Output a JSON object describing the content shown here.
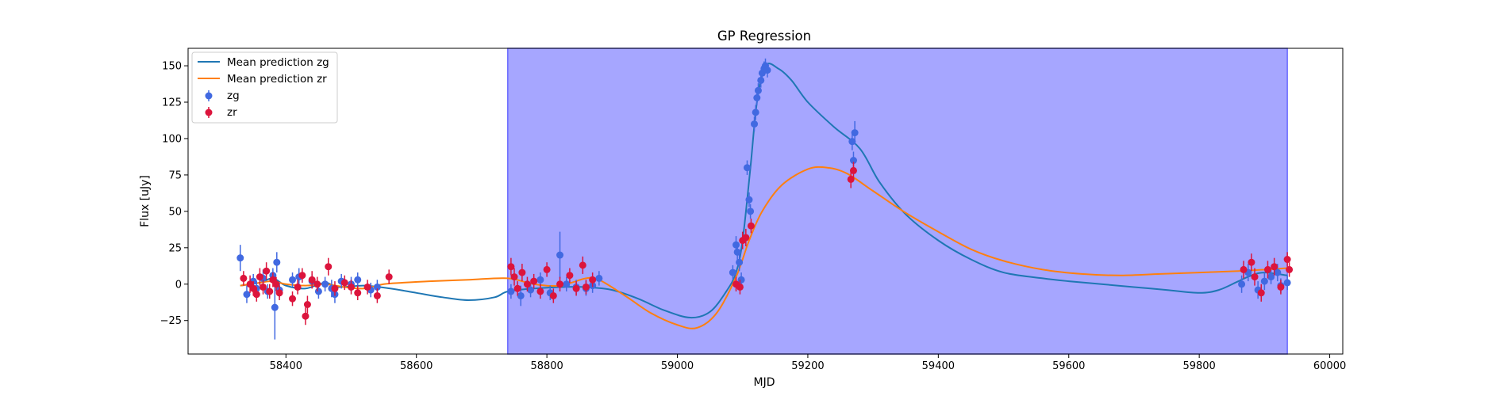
{
  "chart_data": {
    "type": "scatter",
    "title": "GP Regression",
    "xlabel": "MJD",
    "ylabel": "Flux [uJy]",
    "xlim": [
      58250,
      60020
    ],
    "ylim": [
      -48,
      162
    ],
    "xticks": [
      58400,
      58600,
      58800,
      59000,
      59200,
      59400,
      59600,
      59800,
      60000
    ],
    "yticks": [
      -25,
      0,
      25,
      50,
      75,
      100,
      125,
      150
    ],
    "legend_placement": "upper-left",
    "shaded_region": {
      "x0": 58740,
      "x1": 59935,
      "color": "#a6a6ff"
    },
    "colors": {
      "zg_line": "#1f77b4",
      "zr_line": "#ff7f0e",
      "zg_points": "#4169e1",
      "zr_points": "#dc143c",
      "shade": "#a6a6ff"
    },
    "lines": [
      {
        "name": "Mean prediction zg",
        "color": "#1f77b4",
        "points": [
          [
            58330,
            -1
          ],
          [
            58360,
            1
          ],
          [
            58380,
            4
          ],
          [
            58400,
            -1
          ],
          [
            58430,
            -3
          ],
          [
            58460,
            1
          ],
          [
            58480,
            -2
          ],
          [
            58520,
            -1
          ],
          [
            58560,
            -3
          ],
          [
            58600,
            -6
          ],
          [
            58640,
            -9
          ],
          [
            58680,
            -11
          ],
          [
            58720,
            -9
          ],
          [
            58740,
            -5
          ],
          [
            58780,
            -3
          ],
          [
            58820,
            -2
          ],
          [
            58860,
            -2
          ],
          [
            58900,
            -4
          ],
          [
            58940,
            -10
          ],
          [
            58980,
            -18
          ],
          [
            59020,
            -23
          ],
          [
            59050,
            -19
          ],
          [
            59075,
            -5
          ],
          [
            59090,
            8
          ],
          [
            59100,
            30
          ],
          [
            59112,
            80
          ],
          [
            59122,
            125
          ],
          [
            59135,
            150
          ],
          [
            59155,
            148
          ],
          [
            59175,
            140
          ],
          [
            59200,
            125
          ],
          [
            59240,
            108
          ],
          [
            59280,
            93
          ],
          [
            59310,
            70
          ],
          [
            59350,
            48
          ],
          [
            59400,
            30
          ],
          [
            59450,
            17
          ],
          [
            59500,
            8
          ],
          [
            59560,
            4
          ],
          [
            59600,
            2
          ],
          [
            59650,
            0
          ],
          [
            59700,
            -2
          ],
          [
            59750,
            -4
          ],
          [
            59800,
            -6
          ],
          [
            59830,
            -4
          ],
          [
            59860,
            2
          ],
          [
            59880,
            6
          ],
          [
            59900,
            8
          ],
          [
            59935,
            6
          ]
        ]
      },
      {
        "name": "Mean prediction zr",
        "color": "#ff7f0e",
        "points": [
          [
            58330,
            -1
          ],
          [
            58360,
            1
          ],
          [
            58380,
            2
          ],
          [
            58400,
            0
          ],
          [
            58430,
            -1
          ],
          [
            58460,
            0
          ],
          [
            58490,
            -2
          ],
          [
            58520,
            -3
          ],
          [
            58550,
            0
          ],
          [
            58580,
            1
          ],
          [
            58620,
            2
          ],
          [
            58680,
            3
          ],
          [
            58740,
            4
          ],
          [
            58780,
            0
          ],
          [
            58820,
            -1
          ],
          [
            58860,
            4
          ],
          [
            58880,
            3
          ],
          [
            58920,
            -8
          ],
          [
            58960,
            -20
          ],
          [
            59000,
            -28
          ],
          [
            59030,
            -30
          ],
          [
            59060,
            -20
          ],
          [
            59090,
            5
          ],
          [
            59110,
            30
          ],
          [
            59130,
            50
          ],
          [
            59160,
            68
          ],
          [
            59200,
            79
          ],
          [
            59230,
            80
          ],
          [
            59260,
            76
          ],
          [
            59300,
            64
          ],
          [
            59350,
            49
          ],
          [
            59400,
            36
          ],
          [
            59450,
            24
          ],
          [
            59500,
            16
          ],
          [
            59560,
            10
          ],
          [
            59620,
            7
          ],
          [
            59680,
            6
          ],
          [
            59740,
            7
          ],
          [
            59800,
            8
          ],
          [
            59860,
            9
          ],
          [
            59900,
            10
          ],
          [
            59935,
            11
          ]
        ]
      }
    ],
    "series": [
      {
        "name": "zg",
        "color": "#4169e1",
        "points": [
          [
            58330,
            18,
            9
          ],
          [
            58340,
            -7,
            6
          ],
          [
            58350,
            2,
            5
          ],
          [
            58355,
            -3,
            5
          ],
          [
            58365,
            4,
            6
          ],
          [
            58372,
            -5,
            5
          ],
          [
            58380,
            6,
            5
          ],
          [
            58383,
            -16,
            22
          ],
          [
            58386,
            15,
            7
          ],
          [
            58390,
            -4,
            5
          ],
          [
            58410,
            3,
            5
          ],
          [
            58420,
            5,
            6
          ],
          [
            58440,
            2,
            5
          ],
          [
            58450,
            -5,
            5
          ],
          [
            58460,
            0,
            5
          ],
          [
            58470,
            -3,
            6
          ],
          [
            58475,
            -7,
            6
          ],
          [
            58485,
            2,
            5
          ],
          [
            58500,
            0,
            5
          ],
          [
            58510,
            3,
            5
          ],
          [
            58530,
            -4,
            5
          ],
          [
            58540,
            -2,
            5
          ],
          [
            58745,
            -5,
            5
          ],
          [
            58760,
            -8,
            7
          ],
          [
            58775,
            -4,
            5
          ],
          [
            58790,
            3,
            5
          ],
          [
            58805,
            -6,
            5
          ],
          [
            58820,
            20,
            16
          ],
          [
            58830,
            0,
            5
          ],
          [
            58845,
            -2,
            5
          ],
          [
            58860,
            -3,
            5
          ],
          [
            58870,
            -1,
            5
          ],
          [
            58880,
            4,
            5
          ],
          [
            59085,
            8,
            5
          ],
          [
            59090,
            27,
            6
          ],
          [
            59092,
            22,
            6
          ],
          [
            59095,
            15,
            6
          ],
          [
            59098,
            3,
            5
          ],
          [
            59107,
            80,
            5
          ],
          [
            59110,
            58,
            5
          ],
          [
            59112,
            50,
            5
          ],
          [
            59118,
            110,
            5
          ],
          [
            59120,
            118,
            5
          ],
          [
            59122,
            128,
            5
          ],
          [
            59124,
            133,
            5
          ],
          [
            59128,
            140,
            5
          ],
          [
            59130,
            145,
            5
          ],
          [
            59133,
            148,
            5
          ],
          [
            59135,
            150,
            5
          ],
          [
            59138,
            147,
            5
          ],
          [
            59268,
            98,
            6
          ],
          [
            59272,
            104,
            8
          ],
          [
            59270,
            85,
            6
          ],
          [
            59865,
            0,
            6
          ],
          [
            59875,
            8,
            6
          ],
          [
            59890,
            -4,
            6
          ],
          [
            59900,
            2,
            6
          ],
          [
            59910,
            5,
            5
          ],
          [
            59920,
            8,
            6
          ],
          [
            59925,
            -1,
            5
          ],
          [
            59935,
            1,
            5
          ]
        ]
      },
      {
        "name": "zr",
        "color": "#dc143c",
        "points": [
          [
            58335,
            4,
            5
          ],
          [
            58345,
            0,
            6
          ],
          [
            58350,
            -3,
            5
          ],
          [
            58355,
            -7,
            5
          ],
          [
            58360,
            5,
            6
          ],
          [
            58365,
            -2,
            5
          ],
          [
            58370,
            9,
            6
          ],
          [
            58375,
            -5,
            5
          ],
          [
            58380,
            3,
            5
          ],
          [
            58385,
            0,
            5
          ],
          [
            58390,
            -6,
            5
          ],
          [
            58410,
            -10,
            5
          ],
          [
            58418,
            -2,
            5
          ],
          [
            58425,
            6,
            5
          ],
          [
            58430,
            -22,
            6
          ],
          [
            58433,
            -14,
            6
          ],
          [
            58440,
            3,
            6
          ],
          [
            58448,
            0,
            5
          ],
          [
            58465,
            12,
            6
          ],
          [
            58475,
            -3,
            5
          ],
          [
            58490,
            1,
            5
          ],
          [
            58500,
            -2,
            5
          ],
          [
            58510,
            -6,
            5
          ],
          [
            58525,
            -2,
            5
          ],
          [
            58540,
            -8,
            5
          ],
          [
            58558,
            5,
            5
          ],
          [
            58745,
            12,
            6
          ],
          [
            58750,
            5,
            6
          ],
          [
            58755,
            -3,
            5
          ],
          [
            58762,
            8,
            6
          ],
          [
            58770,
            0,
            5
          ],
          [
            58780,
            2,
            5
          ],
          [
            58790,
            -5,
            5
          ],
          [
            58800,
            10,
            5
          ],
          [
            58810,
            -8,
            5
          ],
          [
            58820,
            0,
            5
          ],
          [
            58835,
            6,
            5
          ],
          [
            58845,
            -3,
            5
          ],
          [
            58855,
            13,
            6
          ],
          [
            58860,
            -2,
            5
          ],
          [
            58870,
            3,
            5
          ],
          [
            59090,
            0,
            5
          ],
          [
            59096,
            -2,
            5
          ],
          [
            59100,
            30,
            6
          ],
          [
            59105,
            32,
            6
          ],
          [
            59113,
            40,
            5
          ],
          [
            59266,
            72,
            6
          ],
          [
            59270,
            78,
            6
          ],
          [
            59868,
            10,
            6
          ],
          [
            59880,
            15,
            6
          ],
          [
            59885,
            5,
            6
          ],
          [
            59895,
            -6,
            6
          ],
          [
            59905,
            10,
            6
          ],
          [
            59915,
            12,
            6
          ],
          [
            59925,
            -2,
            5
          ],
          [
            59935,
            17,
            5
          ],
          [
            59938,
            10,
            5
          ]
        ]
      }
    ]
  }
}
